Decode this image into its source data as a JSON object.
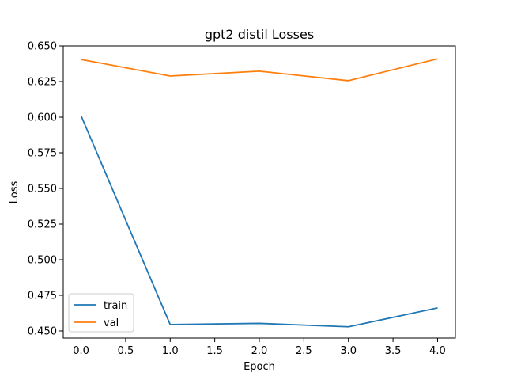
{
  "chart_data": {
    "type": "line",
    "title": "gpt2  distil Losses",
    "xlabel": "Epoch",
    "ylabel": "Loss",
    "xlim": [
      -0.2,
      4.2
    ],
    "ylim": [
      0.445,
      0.65
    ],
    "x": [
      0,
      1,
      2,
      3,
      4
    ],
    "xticks": [
      0.0,
      0.5,
      1.0,
      1.5,
      2.0,
      2.5,
      3.0,
      3.5,
      4.0
    ],
    "xtick_labels": [
      "0.0",
      "0.5",
      "1.0",
      "1.5",
      "2.0",
      "2.5",
      "3.0",
      "3.5",
      "4.0"
    ],
    "yticks": [
      0.45,
      0.475,
      0.5,
      0.525,
      0.55,
      0.575,
      0.6,
      0.625,
      0.65
    ],
    "ytick_labels": [
      "0.450",
      "0.475",
      "0.500",
      "0.525",
      "0.550",
      "0.575",
      "0.600",
      "0.625",
      "0.650"
    ],
    "grid": false,
    "legend": "lower-left",
    "series": [
      {
        "name": "train",
        "color": "#1f77b4",
        "values": [
          0.601,
          0.4545,
          0.4553,
          0.4529,
          0.4662
        ]
      },
      {
        "name": "val",
        "color": "#ff7f0e",
        "values": [
          0.6405,
          0.6289,
          0.6323,
          0.6256,
          0.641
        ]
      }
    ]
  }
}
